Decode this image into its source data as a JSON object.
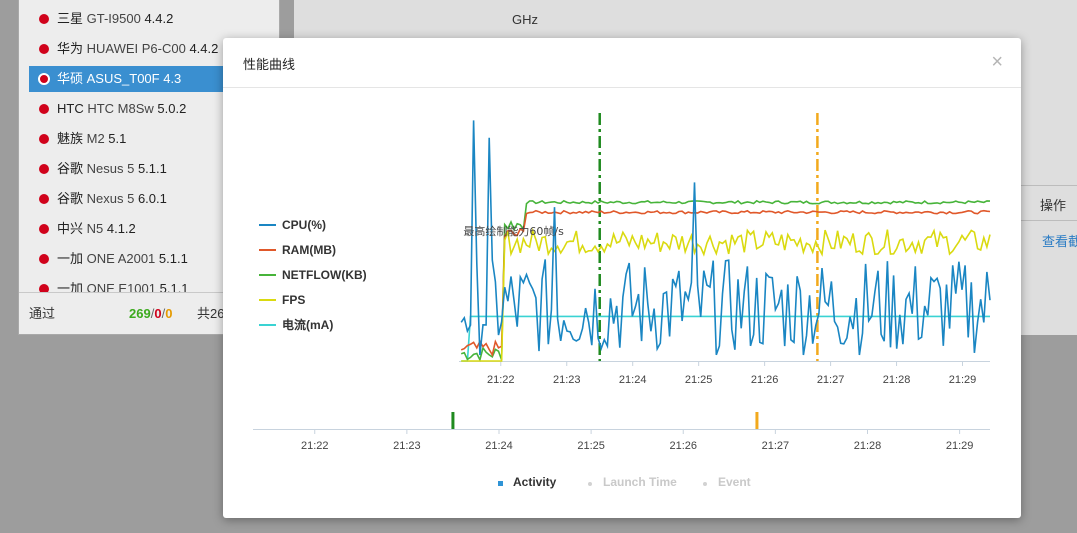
{
  "background": {
    "devices": [
      {
        "brand": "三星",
        "model": "GT-I9500",
        "version": "4.4.2",
        "selected": false
      },
      {
        "brand": "华为",
        "model": "HUAWEI P6-C00",
        "version": "4.4.2",
        "selected": false
      },
      {
        "brand": "华硕",
        "model": "ASUS_T00F",
        "version": "4.3",
        "selected": true
      },
      {
        "brand": "HTC",
        "model": "HTC M8Sw",
        "version": "5.0.2",
        "selected": false
      },
      {
        "brand": "魅族",
        "model": "M2",
        "version": "5.1",
        "selected": false
      },
      {
        "brand": "谷歌",
        "model": "Nesus 5",
        "version": "5.1.1",
        "selected": false
      },
      {
        "brand": "谷歌",
        "model": "Nexus 5",
        "version": "6.0.1",
        "selected": false
      },
      {
        "brand": "中兴",
        "model": "N5",
        "version": "4.1.2",
        "selected": false
      },
      {
        "brand": "一加",
        "model": "ONE A2001",
        "version": "5.1.1",
        "selected": false
      },
      {
        "brand": "一加",
        "model": "ONE E1001",
        "version": "5.1.1",
        "selected": false
      }
    ],
    "pass_label": "通过",
    "pass_ok": "269",
    "pass_fail": "0",
    "pass_warn": "0",
    "total_label": "共26",
    "ghz_label": "GHz",
    "ops_header": "操作",
    "view_link": "查看截"
  },
  "modal": {
    "title": "性能曲线",
    "close_glyph": "×",
    "legend": [
      {
        "label": "CPU(%)",
        "color": "#1a86c3"
      },
      {
        "label": "RAM(MB)",
        "color": "#e0582a"
      },
      {
        "label": "NETFLOW(KB)",
        "color": "#47b43a"
      },
      {
        "label": "FPS",
        "color": "#dada10"
      },
      {
        "label": "电流(mA)",
        "color": "#3ad3d3"
      }
    ],
    "bottom_legend": [
      {
        "label": "Activity",
        "color": "#333333",
        "marker": "square"
      },
      {
        "label": "Launch Time",
        "color": "#c9c9c9",
        "marker": "dot"
      },
      {
        "label": "Event",
        "color": "#c9c9c9",
        "marker": "dot"
      }
    ]
  },
  "chart_data": {
    "type": "line",
    "annotation": "最高绘制能力60帧/s",
    "x_ticks": [
      "21:22",
      "21:23",
      "21:24",
      "21:25",
      "21:26",
      "21:27",
      "21:28",
      "21:29"
    ],
    "nav_x_ticks": [
      "21:22",
      "21:23",
      "21:24",
      "21:25",
      "21:26",
      "21:27",
      "21:28",
      "21:29"
    ],
    "x_range": [
      "21:21:22",
      "21:29:25"
    ],
    "y_range": [
      0,
      100
    ],
    "event_markers": [
      {
        "time": "21:23:30",
        "color": "#1f8a1f"
      },
      {
        "time": "21:26:48",
        "color": "#f2a91d"
      }
    ],
    "series": [
      {
        "name": "CPU(%)",
        "color": "#1a86c3",
        "style": "noisy",
        "baseline": 14,
        "amplitude": 26,
        "peak_values": [
          97,
          90,
          62,
          72
        ]
      },
      {
        "name": "RAM(MB)",
        "color": "#e0582a",
        "style": "plateau",
        "level": 60,
        "start_level": 2
      },
      {
        "name": "NETFLOW(KB)",
        "color": "#47b43a",
        "style": "plateau",
        "level": 64,
        "start_level": 0
      },
      {
        "name": "FPS",
        "color": "#dada10",
        "style": "noisy",
        "baseline": 46,
        "amplitude": 10
      },
      {
        "name": "电流(mA)",
        "color": "#3ad3d3",
        "style": "flat",
        "level": 18
      }
    ]
  }
}
